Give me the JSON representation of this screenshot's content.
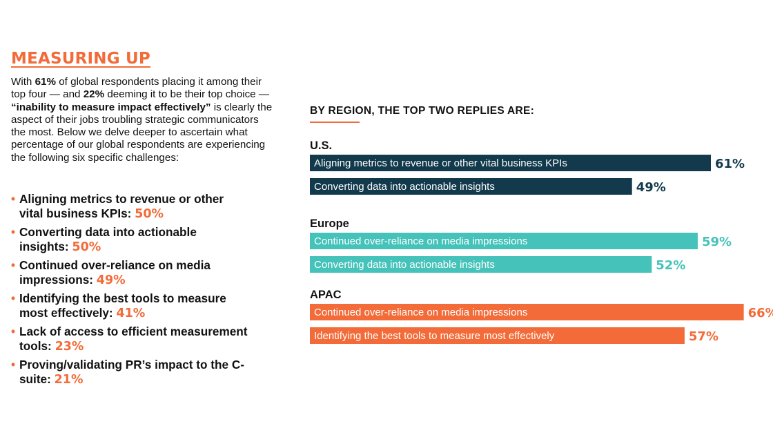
{
  "title": "MEASURING UP",
  "intro": {
    "p1": "With ",
    "b1": "61%",
    "p2": " of global respondents placing it among their top four — and ",
    "b2": "22%",
    "p3": " deeming it to be their top choice — ",
    "b3": "“inability to measure impact effectively”",
    "p4": " is clearly the aspect of their jobs troubling strategic communicators the most.  Below we delve deeper to ascertain what percentage of our global respondents are experiencing the following six specific challenges:"
  },
  "bullets": [
    {
      "text": "Aligning metrics to revenue or other vital business KPIs: ",
      "value": "50%"
    },
    {
      "text": "Converting data into actionable insights: ",
      "value": "50%"
    },
    {
      "text": "Continued over-reliance on media impressions: ",
      "value": "49%"
    },
    {
      "text": "Identifying the best tools to measure most effectively: ",
      "value": "41%"
    },
    {
      "text": "Lack of access to efficient measurement tools: ",
      "value": "23%"
    },
    {
      "text": "Proving/validating PR’s impact to the C-suite: ",
      "value": "21%"
    }
  ],
  "bullet_marker": "•",
  "colors": {
    "accent": "#f26b38",
    "us": "#123a4c",
    "europe": "#45c2b9",
    "apac": "#f26b38",
    "text": "#111111",
    "bar_text": "#ffffff"
  },
  "chart_data": {
    "type": "bar",
    "orientation": "horizontal",
    "title": "BY REGION, THE TOP TWO REPLIES ARE:",
    "value_suffix": "%",
    "xlim": [
      0,
      100
    ],
    "groups": [
      {
        "name": "U.S.",
        "color": "#123a4c",
        "bars": [
          {
            "label": "Aligning metrics to revenue or other vital business KPIs",
            "value": 61
          },
          {
            "label": "Converting data into actionable insights",
            "value": 49
          }
        ]
      },
      {
        "name": "Europe",
        "color": "#45c2b9",
        "bars": [
          {
            "label": "Continued over-reliance on media impressions",
            "value": 59
          },
          {
            "label": "Converting data into actionable insights",
            "value": 52
          }
        ]
      },
      {
        "name": "APAC",
        "color": "#f26b38",
        "bars": [
          {
            "label": "Continued over-reliance on media impressions",
            "value": 66
          },
          {
            "label": "Identifying the best tools to measure most effectively",
            "value": 57
          }
        ]
      }
    ]
  }
}
